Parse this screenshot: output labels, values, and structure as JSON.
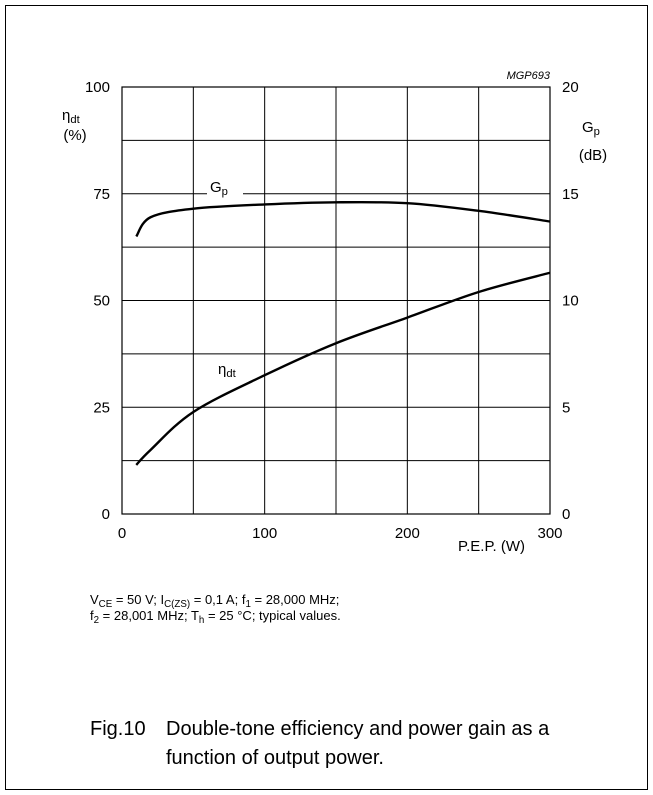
{
  "chart_data": {
    "type": "line",
    "code": "MGP693",
    "x_label": "P.E.P. (W)",
    "y_label": [
      "η",
      "dt"
    ],
    "y_unit": "(%)",
    "y2_label": [
      "G",
      "p"
    ],
    "y2_unit": "(dB)",
    "x": [
      10,
      20,
      50,
      100,
      150,
      200,
      250,
      300
    ],
    "series": [
      {
        "name": [
          "η",
          "dt"
        ],
        "color": "#000000",
        "values": [
          11.5,
          15,
          23.9,
          32.5,
          40,
          46,
          52,
          56.5
        ]
      },
      {
        "name": [
          "G",
          "p"
        ],
        "color": "#000000",
        "axis": "y2",
        "values": [
          13.0,
          13.9,
          14.3,
          14.5,
          14.6,
          14.56,
          14.2,
          13.7
        ]
      }
    ],
    "xlim": [
      0,
      300
    ],
    "xticks": [
      0,
      100,
      200,
      300
    ],
    "x_minor_ticks": [
      50,
      150,
      250
    ],
    "ylim": [
      0,
      100
    ],
    "yticks": [
      0,
      25,
      50,
      75,
      100
    ],
    "y_minor_ticks": [
      12.5,
      37.5,
      62.5,
      87.5
    ],
    "y2lim": [
      0,
      20
    ],
    "y2ticks": [
      0,
      5,
      10,
      15,
      20
    ],
    "grid": true,
    "conditions": [
      [
        "V",
        "CE",
        " = 50 V; I",
        "C(ZS)",
        " = 0,1 A; f",
        "1",
        " = 28,000 MHz;"
      ],
      [
        "f",
        "2",
        " = 28,001 MHz; T",
        "h",
        " = 25 °C; typical values."
      ]
    ],
    "caption_label": "Fig.10",
    "caption": [
      "Double-tone efficiency and power gain as a",
      "function of output power."
    ]
  }
}
